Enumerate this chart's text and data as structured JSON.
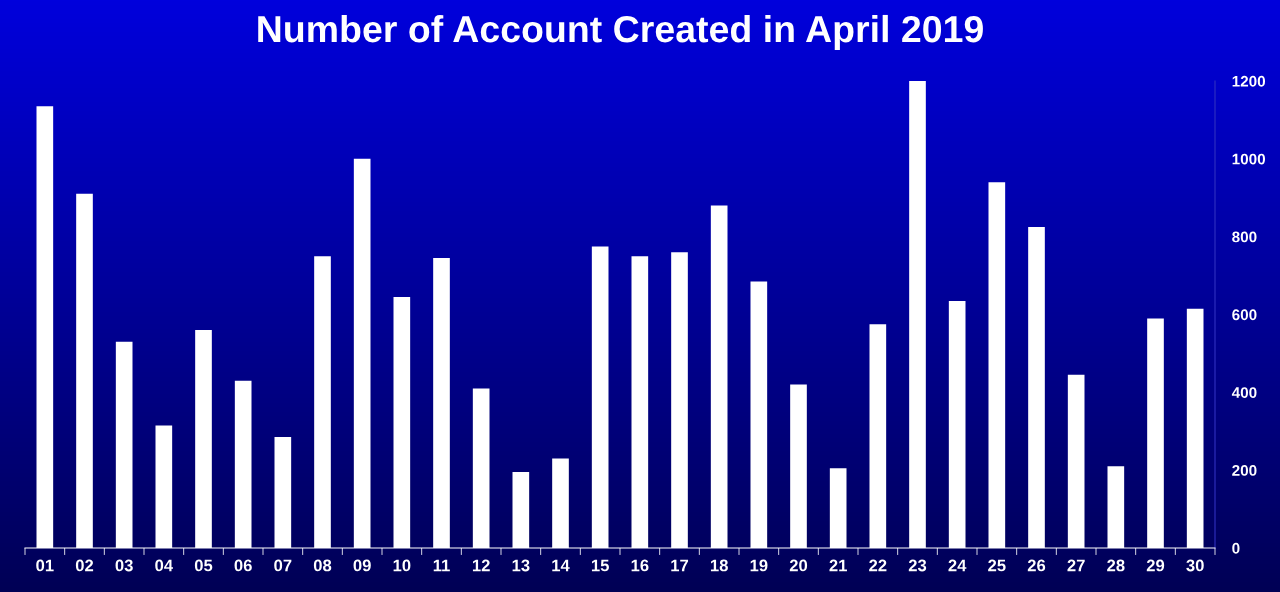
{
  "chart_data": {
    "type": "bar",
    "title": "Number of Account Created in April 2019",
    "categories": [
      "01",
      "02",
      "03",
      "04",
      "05",
      "06",
      "07",
      "08",
      "09",
      "10",
      "11",
      "12",
      "13",
      "14",
      "15",
      "16",
      "17",
      "18",
      "19",
      "20",
      "21",
      "22",
      "23",
      "24",
      "25",
      "26",
      "27",
      "28",
      "29",
      "30"
    ],
    "values": [
      1135,
      910,
      530,
      315,
      560,
      430,
      285,
      750,
      1000,
      645,
      745,
      410,
      195,
      230,
      775,
      750,
      760,
      880,
      685,
      420,
      205,
      575,
      1200,
      635,
      940,
      825,
      445,
      210,
      590,
      615
    ],
    "color": "#ffffff",
    "ylim": [
      0,
      1200
    ],
    "yticks": [
      0,
      200,
      400,
      600,
      800,
      1000,
      1200
    ],
    "grid": false
  }
}
